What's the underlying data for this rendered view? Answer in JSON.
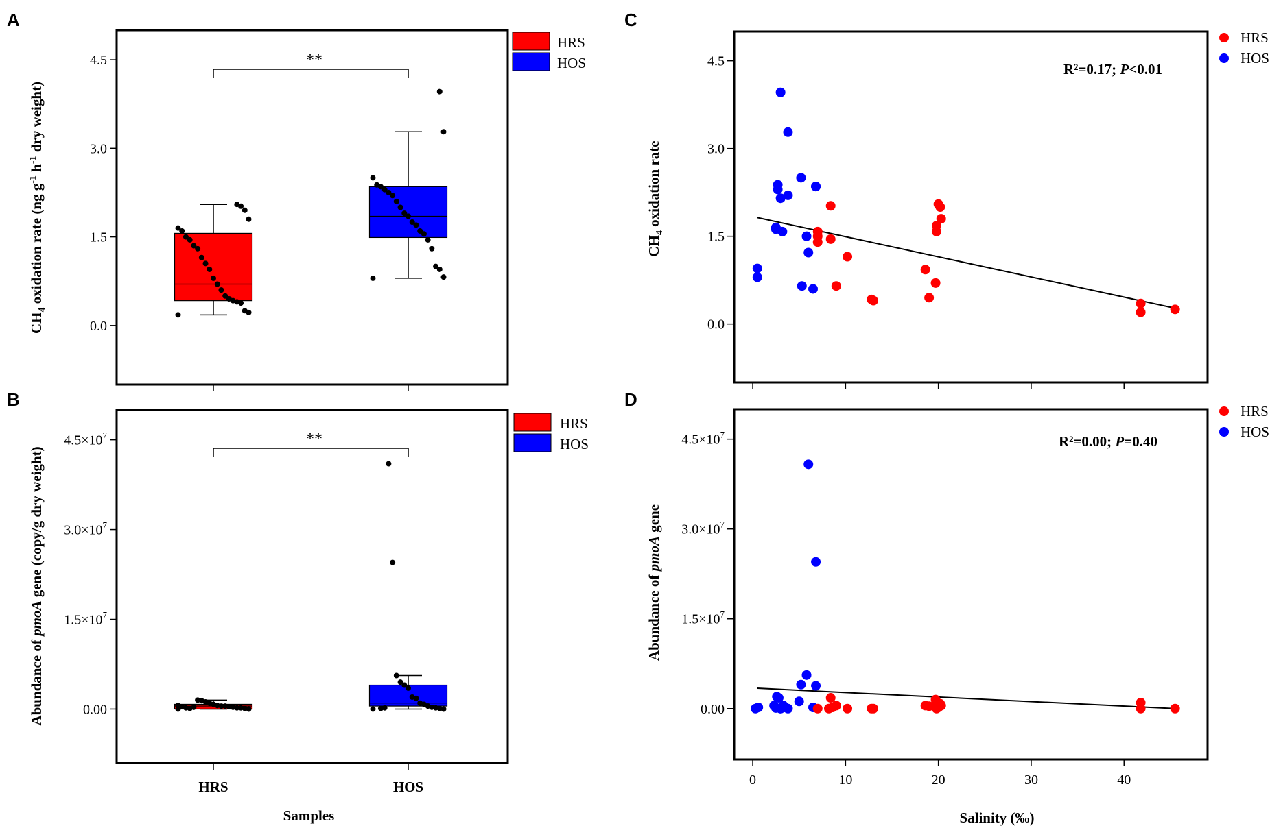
{
  "colors": {
    "HRS": "#ff0000",
    "HOS": "#0000ff",
    "point": "#000000",
    "frame": "#000000"
  },
  "chart_data": [
    {
      "panel": "A",
      "type": "box",
      "ylabel_prefix": "CH",
      "ylabel_sub": "4",
      "ylabel_main": " oxidation rate (ng g",
      "ylabel_sup1": "-1",
      "ylabel_mid": " h",
      "ylabel_sup2": "-1",
      "ylabel_end": " dry weight)",
      "ylim": [
        -1.0,
        5.0
      ],
      "yticks": [
        0.0,
        1.5,
        3.0,
        4.5
      ],
      "ytick_labels": [
        "0.0",
        "1.5",
        "3.0",
        "4.5"
      ],
      "significance": "**",
      "legend": [
        "HRS",
        "HOS"
      ],
      "legend_position": "outside-top-right",
      "groups": [
        {
          "name": "HRS",
          "q1": 0.42,
          "median": 0.7,
          "q3": 1.56,
          "whisker_low": 0.18,
          "whisker_high": 2.05,
          "points": [
            0.18,
            0.22,
            0.25,
            0.38,
            0.4,
            0.42,
            0.45,
            0.5,
            0.6,
            0.7,
            0.8,
            0.95,
            1.05,
            1.15,
            1.3,
            1.35,
            1.45,
            1.5,
            1.6,
            1.65,
            1.8,
            1.95,
            2.02,
            2.05
          ]
        },
        {
          "name": "HOS",
          "q1": 1.49,
          "median": 1.85,
          "q3": 2.35,
          "whisker_low": 0.8,
          "whisker_high": 3.28,
          "points": [
            0.8,
            0.82,
            0.95,
            1.0,
            1.3,
            1.45,
            1.55,
            1.6,
            1.7,
            1.75,
            1.85,
            1.9,
            2.0,
            2.1,
            2.2,
            2.25,
            2.3,
            2.35,
            2.38,
            2.5,
            3.28,
            3.96
          ]
        }
      ]
    },
    {
      "panel": "B",
      "type": "box",
      "ylabel_pre": "Abundance of ",
      "ylabel_italic": "pmoA",
      "ylabel_post": " gene (copy/g dry weight)",
      "ylim": [
        -9000000.0,
        50000000.0
      ],
      "yticks": [
        0,
        15000000.0,
        30000000.0,
        45000000.0
      ],
      "ytick_labels": [
        "0.00",
        "1.5×10",
        "3.0×10",
        "4.5×10"
      ],
      "ytick_exponents": [
        "",
        "7",
        "7",
        "7"
      ],
      "significance": "**",
      "xlabel": "Samples",
      "categories": [
        "HRS",
        "HOS"
      ],
      "legend": [
        "HRS",
        "HOS"
      ],
      "legend_position": "outside-top-right",
      "groups": [
        {
          "name": "HRS",
          "q1": 0.0,
          "median": 500000.0,
          "q3": 800000.0,
          "whisker_low": 0.0,
          "whisker_high": 1500000.0,
          "points": [
            0,
            0,
            100000.0,
            200000.0,
            200000.0,
            300000.0,
            400000.0,
            500000.0,
            500000.0,
            600000.0,
            800000.0,
            1000000.0,
            1200000.0,
            1400000.0,
            1500000.0,
            300000.0,
            100000.0,
            200000.0,
            400000.0,
            600000.0
          ]
        },
        {
          "name": "HOS",
          "q1": 500000.0,
          "median": 1000000.0,
          "q3": 4000000.0,
          "whisker_low": 0.0,
          "whisker_high": 5600000.0,
          "points": [
            0,
            0,
            100000.0,
            200000.0,
            300000.0,
            500000.0,
            800000.0,
            1000000.0,
            1800000.0,
            2000000.0,
            3500000.0,
            4000000.0,
            4500000.0,
            5600000.0,
            24500000.0,
            41000000.0,
            200000.0,
            100000.0
          ]
        }
      ]
    },
    {
      "panel": "C",
      "type": "scatter",
      "ylabel_prefix": "CH",
      "ylabel_sub": "4",
      "ylabel_main": " oxidation rate",
      "xlim": [
        -2,
        49
      ],
      "ylim": [
        -1.0,
        5.0
      ],
      "yticks": [
        0.0,
        1.5,
        3.0,
        4.5
      ],
      "ytick_labels": [
        "0.0",
        "1.5",
        "3.0",
        "4.5"
      ],
      "stat_pre": "R²=0.17; ",
      "stat_italic": "P",
      "stat_post": "<0.01",
      "legend": [
        "HRS",
        "HOS"
      ],
      "fit_line": {
        "x": [
          0.5,
          45.5
        ],
        "y": [
          1.82,
          0.27
        ]
      },
      "series": [
        {
          "name": "HOS",
          "x": [
            0.5,
            0.5,
            2.5,
            2.7,
            2.7,
            3.0,
            3.2,
            3.8,
            3.8,
            5.2,
            5.8,
            6.0,
            6.8,
            6.8,
            5.3,
            6.5,
            2.5,
            3.0
          ],
          "y": [
            0.8,
            0.95,
            1.65,
            2.3,
            2.38,
            2.15,
            1.58,
            3.28,
            2.2,
            2.5,
            1.5,
            1.22,
            2.35,
            2.35,
            0.65,
            0.6,
            1.62,
            3.96
          ]
        },
        {
          "name": "HRS",
          "x": [
            7.0,
            7.0,
            7.0,
            8.4,
            8.4,
            9.0,
            10.2,
            12.8,
            13.0,
            18.6,
            19.0,
            19.7,
            19.8,
            19.8,
            20.0,
            20.2,
            20.3,
            41.8,
            41.8,
            45.5
          ],
          "y": [
            1.58,
            1.5,
            1.4,
            2.02,
            1.45,
            0.65,
            1.15,
            0.42,
            0.4,
            0.93,
            0.45,
            0.7,
            1.58,
            1.68,
            2.05,
            2.0,
            1.8,
            0.35,
            0.2,
            0.25
          ]
        }
      ]
    },
    {
      "panel": "D",
      "type": "scatter",
      "ylabel_pre": "Abundance of ",
      "ylabel_italic": "pmoA",
      "ylabel_post": " gene",
      "xlabel": "Salinity (‰)",
      "xlim": [
        -2,
        49
      ],
      "xticks": [
        0,
        10,
        20,
        30,
        40
      ],
      "xtick_labels": [
        "0",
        "10",
        "20",
        "30",
        "40"
      ],
      "ylim": [
        -8500000.0,
        50000000.0
      ],
      "yticks": [
        0,
        15000000.0,
        30000000.0,
        45000000.0
      ],
      "ytick_labels": [
        "0.00",
        "1.5×10",
        "3.0×10",
        "4.5×10"
      ],
      "ytick_exponents": [
        "",
        "7",
        "7",
        "7"
      ],
      "stat_pre": "R²=0.00; ",
      "stat_italic": "P",
      "stat_post": "=0.40",
      "legend": [
        "HRS",
        "HOS"
      ],
      "fit_line": {
        "x": [
          0.5,
          45.5
        ],
        "y": [
          3400000.0,
          0.0
        ]
      },
      "series": [
        {
          "name": "HOS",
          "x": [
            0.3,
            0.6,
            2.3,
            2.6,
            2.8,
            3.0,
            3.3,
            3.5,
            3.8,
            5.0,
            5.2,
            5.8,
            6.0,
            6.8,
            6.8,
            6.5,
            2.5,
            3.0
          ],
          "y": [
            0,
            200000.0,
            500000.0,
            2000000.0,
            1800000.0,
            0.0,
            500000.0,
            200000.0,
            0.0,
            1200000.0,
            4000000.0,
            5600000.0,
            40800000.0,
            24500000.0,
            3800000.0,
            200000.0,
            100000.0,
            0.0
          ]
        },
        {
          "name": "HRS",
          "x": [
            7.0,
            8.4,
            8.6,
            9.0,
            10.2,
            12.8,
            13.0,
            18.6,
            19.0,
            19.7,
            19.8,
            19.8,
            20.0,
            20.2,
            20.3,
            41.8,
            41.8,
            45.5,
            8.2
          ],
          "y": [
            0,
            1800000.0,
            200000.0,
            500000.0,
            0.0,
            0.0,
            0.0,
            500000.0,
            400000.0,
            1500000.0,
            600000.0,
            0.0,
            200000.0,
            800000.0,
            500000.0,
            1000000.0,
            0.0,
            0.0,
            0.0
          ]
        }
      ]
    }
  ]
}
